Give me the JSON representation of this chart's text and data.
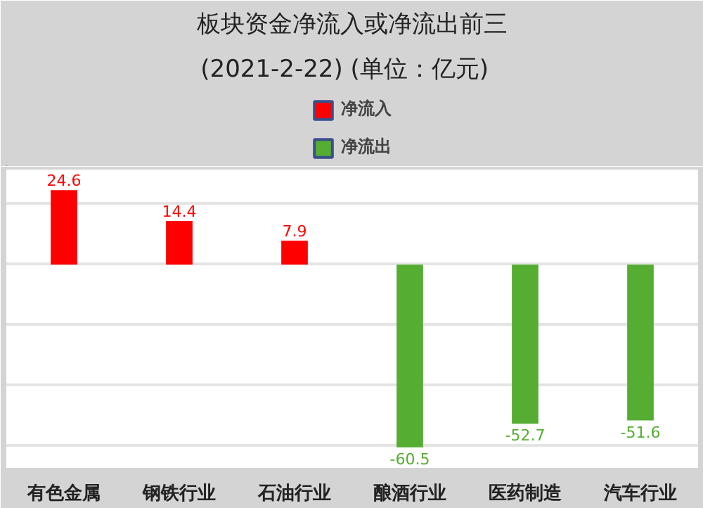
{
  "chart_data": {
    "type": "bar",
    "title": "板块资金净流入或净流出前三",
    "subtitle": "(2021-2-22)   (单位：亿元)",
    "categories": [
      "有色金属",
      "钢铁行业",
      "石油行业",
      "酿酒行业",
      "医药制造",
      "汽车行业"
    ],
    "series": [
      {
        "name": "净流入",
        "color": "#ff0000",
        "values": [
          24.6,
          14.4,
          7.9,
          null,
          null,
          null
        ]
      },
      {
        "name": "净流出",
        "color": "#55ad32",
        "values": [
          null,
          null,
          null,
          -60.5,
          -52.7,
          -51.6
        ]
      }
    ],
    "tick_labels": "x",
    "grid": "y",
    "legend": "top",
    "data_labels": true
  }
}
